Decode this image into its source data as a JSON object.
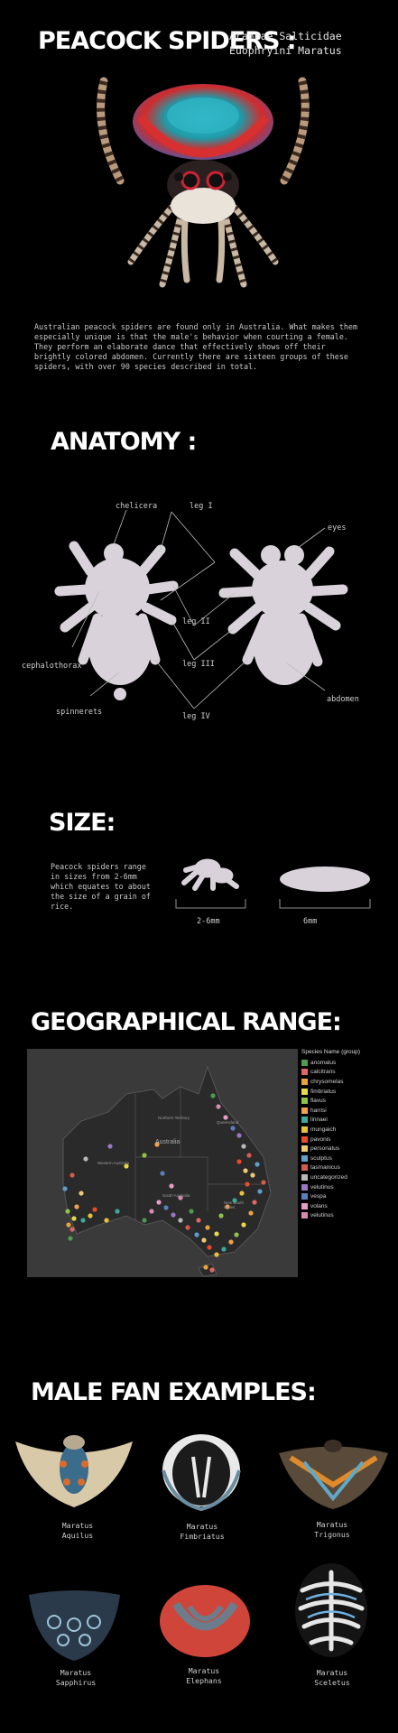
{
  "header": {
    "title": "PEACOCK SPIDERS :",
    "taxonomy_line1": "Araneae Salticidae",
    "taxonomy_line2": "Euophryini Maratus"
  },
  "intro": "Australian peacock spiders are found only in Australia. What makes them especially unique is that the male's behavior when courting a female. They perform an elaborate dance that effectively shows off their brightly colored abdomen. Currently there are sixteen groups of these spiders, with over 90 species described in total.",
  "anatomy": {
    "title": "ANATOMY :",
    "labels": {
      "chelicera": "chelicera",
      "leg1": "leg I",
      "eyes": "eyes",
      "leg2": "leg II",
      "cephalothorax": "cephalothorax",
      "leg3": "leg III",
      "abdomen": "abdomen",
      "spinnerets": "spinnerets",
      "leg4": "leg IV"
    }
  },
  "size": {
    "title": "SIZE:",
    "text": "Peacock spiders range in sizes from 2-6mm which equates to about the size of a grain of rice.",
    "spider_size": "2-6mm",
    "rice_size": "6mm"
  },
  "geo": {
    "title": "GEOGRAPHICAL RANGE:",
    "legend_title": "Species Name (group)",
    "legend": [
      {
        "name": "anomalus",
        "color": "#4e9a4e"
      },
      {
        "name": "calcitrans",
        "color": "#e06666"
      },
      {
        "name": "chrysomelas",
        "color": "#e8a33c"
      },
      {
        "name": "fimbriatus",
        "color": "#e6d94a"
      },
      {
        "name": "flavus",
        "color": "#8fc24a"
      },
      {
        "name": "harrisi",
        "color": "#f2a04b"
      },
      {
        "name": "linnaei",
        "color": "#3ea89c"
      },
      {
        "name": "mungaich",
        "color": "#e8c13a"
      },
      {
        "name": "pavonis",
        "color": "#e84a2c"
      },
      {
        "name": "personatus",
        "color": "#f0c873"
      },
      {
        "name": "sculptus",
        "color": "#5f9ec9"
      },
      {
        "name": "tasmanicus",
        "color": "#d75b4c"
      },
      {
        "name": "uncategorized",
        "color": "#b8b8b8"
      },
      {
        "name": "velutinus",
        "color": "#9a77c2"
      },
      {
        "name": "vespa",
        "color": "#5a7fbf"
      },
      {
        "name": "volans",
        "color": "#e59ec2"
      },
      {
        "name": "velutinus",
        "color": "#d98ab0"
      }
    ],
    "map_labels": {
      "australia": "Australia",
      "nt": "Northern Territory",
      "qld": "Queensland",
      "wa": "Western Australia",
      "sa": "South Australia",
      "nsw": "New South Wales"
    }
  },
  "fans": {
    "title": "MALE FAN EXAMPLES:",
    "items": [
      {
        "line1": "Maratus",
        "line2": "Aquilus"
      },
      {
        "line1": "Maratus",
        "line2": "Fimbriatus"
      },
      {
        "line1": "Maratus",
        "line2": "Trigonus"
      },
      {
        "line1": "Maratus",
        "line2": "Sapphirus"
      },
      {
        "line1": "Maratus",
        "line2": "Elephans"
      },
      {
        "line1": "Maratus",
        "line2": "Sceletus"
      }
    ]
  }
}
